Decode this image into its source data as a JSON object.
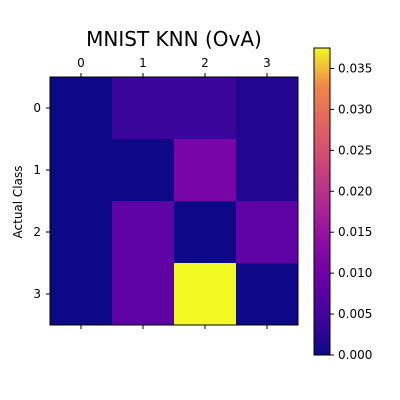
{
  "chart_data": {
    "type": "heatmap",
    "title": "MNIST KNN (OvA)",
    "ylabel": "Actual Class",
    "xlabel": "",
    "x_categories": [
      "0",
      "1",
      "2",
      "3"
    ],
    "y_categories": [
      "0",
      "1",
      "2",
      "3"
    ],
    "values": [
      [
        0.0,
        0.004,
        0.004,
        0.002
      ],
      [
        0.0,
        0.0,
        0.011,
        0.002
      ],
      [
        0.0,
        0.008,
        0.0,
        0.008
      ],
      [
        0.0,
        0.008,
        0.0375,
        0.0
      ]
    ],
    "colormap": "plasma",
    "colorbar": {
      "min": 0.0,
      "max": 0.0375,
      "ticks": [
        0.0,
        0.005,
        0.01,
        0.015,
        0.02,
        0.025,
        0.03,
        0.035
      ],
      "tick_labels": [
        "0.000",
        "0.005",
        "0.010",
        "0.015",
        "0.020",
        "0.025",
        "0.030",
        "0.035"
      ]
    },
    "x_ticks_position": "top",
    "grid": false
  }
}
